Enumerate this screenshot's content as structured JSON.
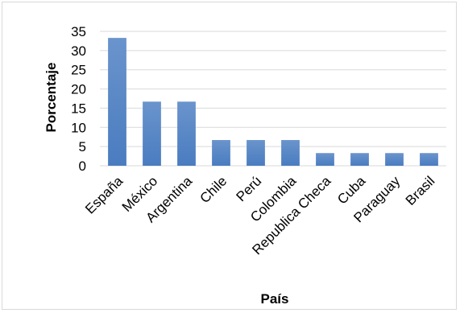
{
  "chart_data": {
    "type": "bar",
    "title": "",
    "xlabel": "País",
    "ylabel": "Porcentaje",
    "categories": [
      "España",
      "México",
      "Argentina",
      "Chile",
      "Perú",
      "Colombia",
      "Republica Checa",
      "Cuba",
      "Paraguay",
      "Brasil"
    ],
    "values": [
      33.3,
      16.7,
      16.7,
      6.7,
      6.7,
      6.7,
      3.3,
      3.3,
      3.3,
      3.3
    ],
    "ylim": [
      0,
      35
    ],
    "yticks": [
      0,
      5,
      10,
      15,
      20,
      25,
      30,
      35
    ],
    "grid": true,
    "legend": "none",
    "colors": {
      "bar": "#4f81bd",
      "bar_light": "#6a94cc",
      "grid": "#d9d9d9",
      "axis": "#d9d9d9"
    }
  }
}
